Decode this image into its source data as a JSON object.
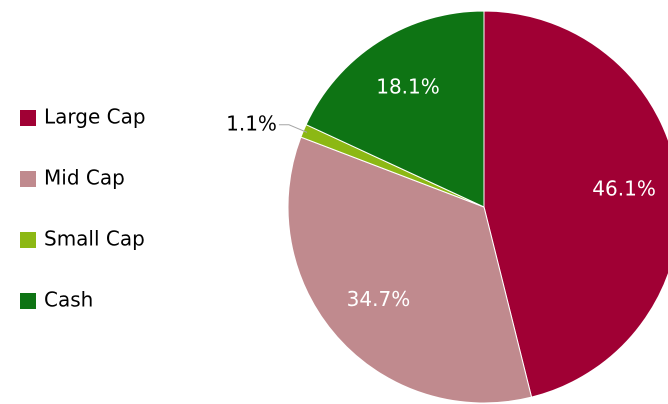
{
  "chart_data": {
    "type": "pie",
    "categories": [
      "Large Cap",
      "Mid Cap",
      "Small Cap",
      "Cash"
    ],
    "values": [
      46.1,
      34.7,
      1.1,
      18.1
    ],
    "value_labels": [
      "46.1%",
      "34.7%",
      "1.1%",
      "18.1%"
    ],
    "colors": [
      "#a00034",
      "#c08a8e",
      "#8cb814",
      "#0e7414"
    ],
    "legend": "left"
  }
}
